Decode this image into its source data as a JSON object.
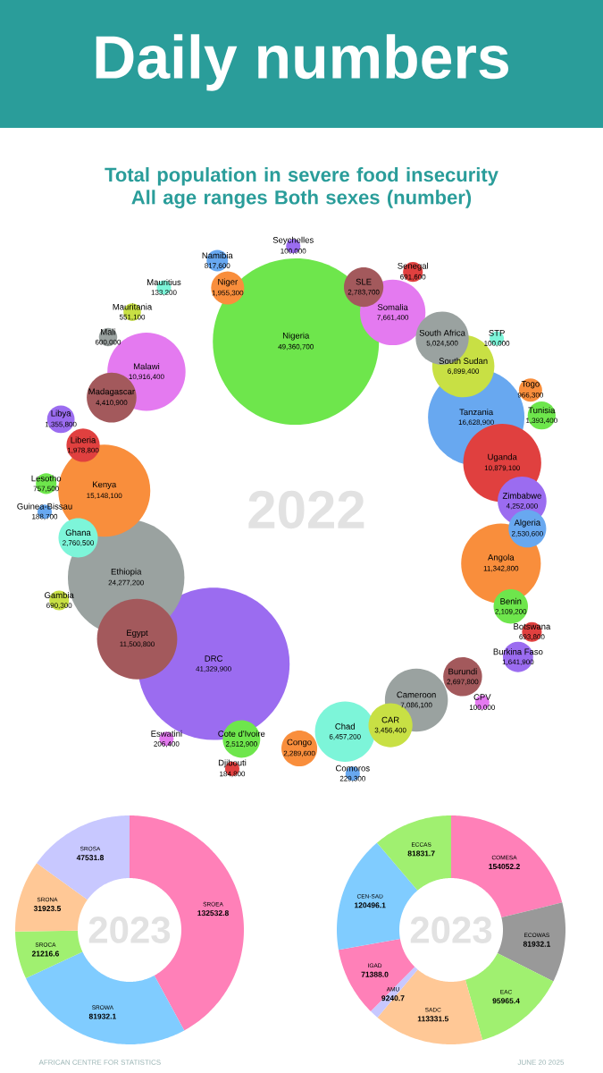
{
  "chart_data": [
    {
      "type": "other",
      "title": "Daily numbers",
      "subtitle": "Total population in severe food insecurity All age ranges Both sexes (number)",
      "categories": [
        "Niger",
        "Nigeria",
        "Seychelles",
        "SLE",
        "Somalia",
        "Senegal",
        "South Africa",
        "South Sudan",
        "STP",
        "Tanzania",
        "Togo",
        "Tunisia",
        "Uganda",
        "Zimbabwe",
        "Algeria",
        "Angola",
        "Benin",
        "Botswana",
        "Burkina Faso",
        "Burundi",
        "CPV",
        "Cameroon",
        "CAR",
        "Chad",
        "Comoros",
        "Congo",
        "Cote d'Ivoire",
        "Djibouti",
        "DRC",
        "Eswatini",
        "Egypt",
        "Ethiopia",
        "Gambia",
        "Ghana",
        "Guinea-Bissau",
        "Kenya",
        "Lesotho",
        "Liberia",
        "Libya",
        "Madagascar",
        "Malawi",
        "Mali",
        "Mauritania",
        "Mauritius",
        "Namibia"
      ],
      "values": [
        1955300,
        49360700,
        100000,
        2783700,
        7661400,
        691600,
        5024500,
        6899400,
        100000,
        16628900,
        966300,
        1393400,
        10879100,
        4252000,
        2530600,
        11342800,
        2109200,
        693800,
        1641900,
        2697800,
        100000,
        7086100,
        3456400,
        6457200,
        229300,
        2289600,
        2512900,
        184800,
        41329900,
        206400,
        11500800,
        24277200,
        690300,
        2760500,
        188700,
        15148100,
        757500,
        1978800,
        1355800,
        4410900,
        10916400,
        600000,
        551100,
        133200,
        817600
      ],
      "value_labels": [
        "1,955,300",
        "49,360,700",
        "100,000",
        "2,783,700",
        "7,661,400",
        "691,600",
        "5,024,500",
        "6,899,400",
        "100,000",
        "16,628,900",
        "966,300",
        "1,393,400",
        "10,879,100",
        "4,252,000",
        "2,530,600",
        "11,342,800",
        "2,109,200",
        "693,800",
        "1,641,900",
        "2,697,800",
        "100,000",
        "7,086,100",
        "3,456,400",
        "6,457,200",
        "229,300",
        "2,289,600",
        "2,512,900",
        "184,800",
        "41,329,900",
        "206,400",
        "11,500,800",
        "24,277,200",
        "690,300",
        "2,760,500",
        "188,700",
        "15,148,100",
        "757,500",
        "1,978,800",
        "1,355,800",
        "4,410,900",
        "10,916,400",
        "600,000",
        "551,100",
        "133,200",
        "817,600"
      ],
      "colors": [
        "#f98e3c",
        "#6ee64c",
        "#9b6cf0",
        "#a3595c",
        "#e47af0",
        "#e0403f",
        "#9aa2a0",
        "#c8e044",
        "#7df5d9",
        "#68a8f0",
        "#f98e3c",
        "#6ee64c",
        "#e0403f",
        "#9b6cf0",
        "#68a8f0",
        "#f98e3c",
        "#6ee64c",
        "#e0403f",
        "#9b6cf0",
        "#a3595c",
        "#e47af0",
        "#9aa2a0",
        "#c8e044",
        "#7df5d9",
        "#68a8f0",
        "#f98e3c",
        "#6ee64c",
        "#e0403f",
        "#9b6cf0",
        "#e47af0",
        "#a3595c",
        "#9aa2a0",
        "#c8e044",
        "#7df5d9",
        "#68a8f0",
        "#f98e3c",
        "#6ee64c",
        "#e0403f",
        "#9b6cf0",
        "#a3595c",
        "#e47af0",
        "#9aa2a0",
        "#c8e044",
        "#7df5d9",
        "#68a8f0"
      ],
      "annotations": [
        "2022",
        "AFRICAN CENTRE FOR STATISTICS",
        "JUNE 20 2025"
      ]
    },
    {
      "type": "donut",
      "categories": [
        "SROEA",
        "SROWA",
        "SROCA",
        "SRONA",
        "SROSA"
      ],
      "values": [
        132532.8,
        81932.1,
        21216.6,
        31923.5,
        47531.8
      ],
      "value_labels": [
        "132532.8",
        "81932.1",
        "21216.6",
        "31923.5",
        "47531.8"
      ],
      "colors": [
        "#ff80b8",
        "#80ccff",
        "#a0f070",
        "#ffc896",
        "#c8c8ff"
      ],
      "annotations": [
        "2023"
      ]
    },
    {
      "type": "donut",
      "categories": [
        "COMESA",
        "ECOWAS",
        "EAC",
        "SADC",
        "AMU",
        "IGAD",
        "CEN-SAD",
        "ECCAS"
      ],
      "values": [
        154052.2,
        81932.1,
        95965.4,
        113331.5,
        9240.7,
        71388.0,
        120496.1,
        81831.7
      ],
      "value_labels": [
        "154052.2",
        "81932.1",
        "95965.4",
        "113331.5",
        "9240.7",
        "71388.0",
        "120496.1",
        "81831.7"
      ],
      "colors": [
        "#ff80b8",
        "#999999",
        "#a0f070",
        "#ffc896",
        "#c8c8ff",
        "#ff80b8",
        "#80ccff",
        "#a0f070"
      ],
      "annotations": [
        "2023"
      ]
    }
  ]
}
